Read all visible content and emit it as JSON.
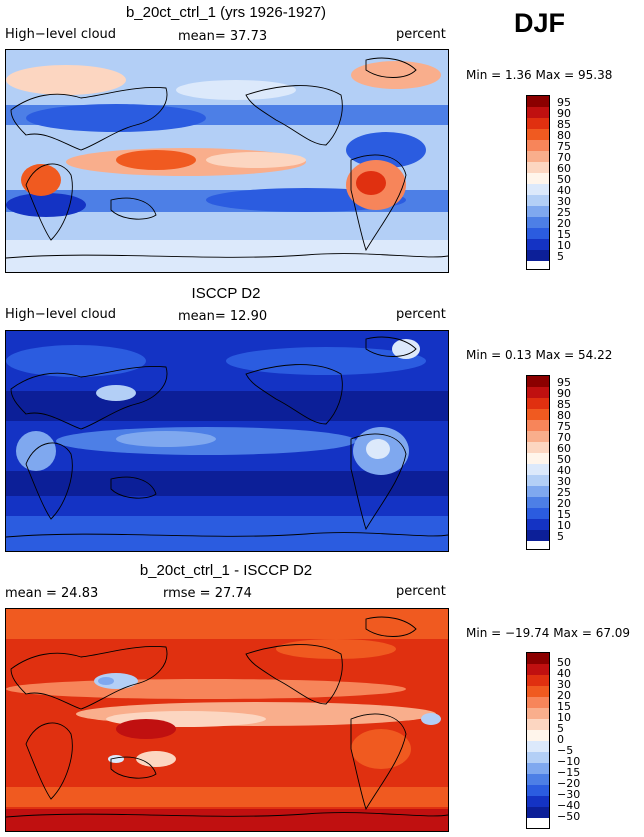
{
  "season": "DJF",
  "panels": [
    {
      "title": "b_20ct_ctrl_1 (yrs 1926-1927)",
      "left": "High−level cloud",
      "center": "mean=  37.73",
      "right": "percent",
      "minmax": "Min =    1.36 Max =   95.38",
      "legend": {
        "colors": [
          "#8b0000",
          "#c01010",
          "#e03010",
          "#f05a20",
          "#f7855a",
          "#f9ae8c",
          "#fcd6c1",
          "#fff5eb",
          "#dce9fb",
          "#b3cff6",
          "#7fa8ef",
          "#4d7fe6",
          "#2b5ce0",
          "#1433c4",
          "#0c1f98"
        ],
        "labels": [
          "95",
          "90",
          "85",
          "80",
          "75",
          "70",
          "60",
          "50",
          "40",
          "30",
          "25",
          "20",
          "15",
          "10",
          "5"
        ]
      }
    },
    {
      "title": "ISCCP D2",
      "left": "High−level cloud",
      "center": "mean=  12.90",
      "right": "percent",
      "minmax": "Min =    0.13 Max =   54.22",
      "legend": {
        "colors": [
          "#8b0000",
          "#c01010",
          "#e03010",
          "#f05a20",
          "#f7855a",
          "#f9ae8c",
          "#fcd6c1",
          "#fff5eb",
          "#dce9fb",
          "#b3cff6",
          "#7fa8ef",
          "#4d7fe6",
          "#2b5ce0",
          "#1433c4",
          "#0c1f98"
        ],
        "labels": [
          "95",
          "90",
          "85",
          "80",
          "75",
          "70",
          "60",
          "50",
          "40",
          "30",
          "25",
          "20",
          "15",
          "10",
          "5"
        ]
      }
    },
    {
      "title": "b_20ct_ctrl_1 - ISCCP D2",
      "left": "mean =   24.83",
      "center": "rmse =   27.74",
      "right": "percent",
      "minmax": "Min = −19.74 Max =   67.09",
      "legend": {
        "colors": [
          "#8b0000",
          "#c01010",
          "#e03010",
          "#f05a20",
          "#f7855a",
          "#f9ae8c",
          "#fcd6c1",
          "#fff5eb",
          "#dce9fb",
          "#b3cff6",
          "#7fa8ef",
          "#4d7fe6",
          "#2b5ce0",
          "#1433c4",
          "#0c1f98"
        ],
        "labels": [
          "50",
          "40",
          "30",
          "20",
          "15",
          "10",
          "5",
          "0",
          "−5",
          "−10",
          "−15",
          "−20",
          "−30",
          "−40",
          "−50"
        ]
      }
    }
  ]
}
